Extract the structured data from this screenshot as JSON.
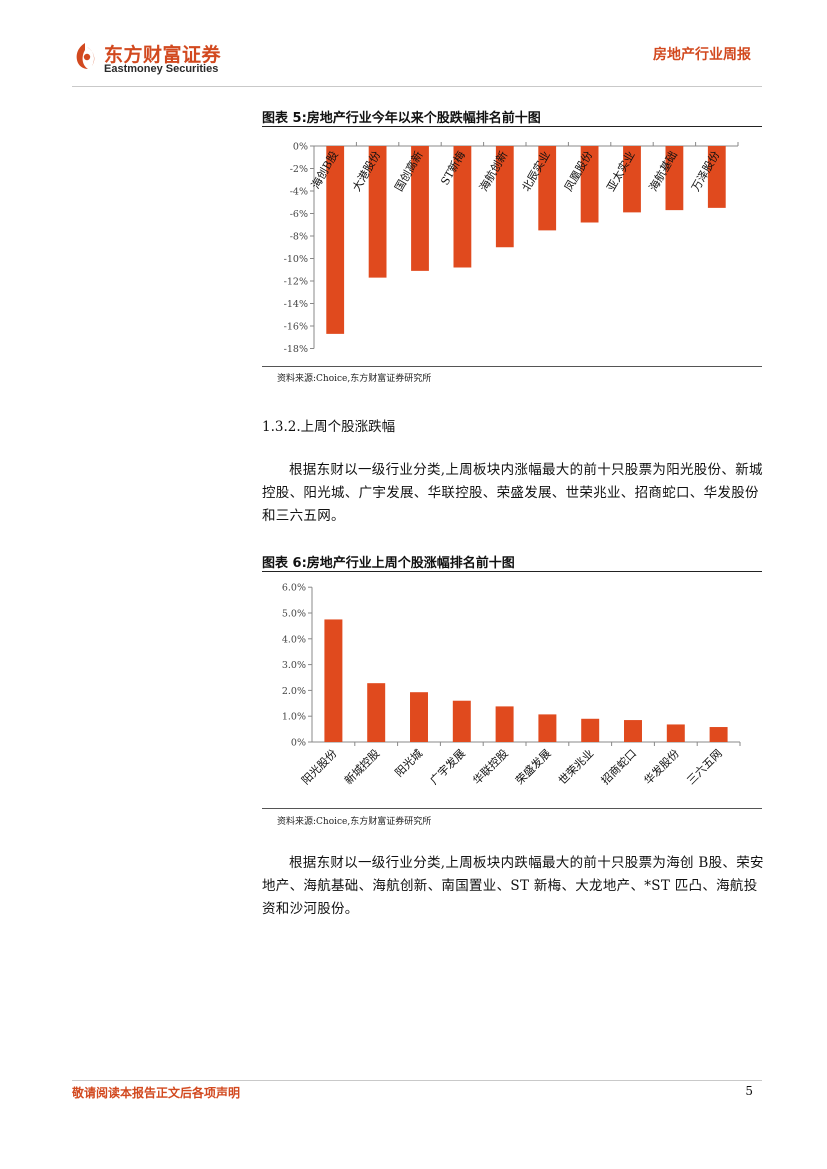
{
  "header": {
    "logo_cn": "东方财富证券",
    "logo_en": "Eastmoney Securities",
    "report_title": "房地产行业周报"
  },
  "figure5": {
    "title": "图表 5:房地产行业今年以来个股跌幅排名前十图",
    "source": "资料来源:Choice,东方财富证券研究所"
  },
  "section": {
    "heading": "1.3.2.上周个股涨跌幅",
    "para1": "根据东财以一级行业分类,上周板块内涨幅最大的前十只股票为阳光股份、新城控股、阳光城、广宇发展、华联控股、荣盛发展、世荣兆业、招商蛇口、华发股份和三六五网。"
  },
  "figure6": {
    "title": "图表 6:房地产行业上周个股涨幅排名前十图",
    "source": "资料来源:Choice,东方财富证券研究所"
  },
  "para2": "根据东财以一级行业分类,上周板块内跌幅最大的前十只股票为海创 B股、荣安地产、海航基础、海航创新、南国置业、ST 新梅、大龙地产、*ST 匹凸、海航投资和沙河股份。",
  "footer": {
    "note": "敬请阅读本报告正文后各项声明",
    "page": "5"
  },
  "colors": {
    "bar": "#e04a1e",
    "brand": "#d2491f"
  },
  "chart_data": [
    {
      "type": "bar",
      "title": "图表 5:房地产行业今年以来个股跌幅排名前十图",
      "categories": [
        "海创B股",
        "大港股份",
        "国创高新",
        "ST新梅",
        "海航创新",
        "北辰实业",
        "凤凰股份",
        "亚太实业",
        "海航基础",
        "万泽股份"
      ],
      "values": [
        -16.7,
        -11.7,
        -11.1,
        -10.8,
        -9.0,
        -7.5,
        -6.8,
        -5.9,
        -5.7,
        -5.5
      ],
      "unit": "%",
      "ylim": [
        -18,
        0
      ],
      "yticks": [
        "0%",
        "-2%",
        "-4%",
        "-6%",
        "-8%",
        "-10%",
        "-12%",
        "-14%",
        "-16%",
        "-18%"
      ],
      "grid": false,
      "legend": "none"
    },
    {
      "type": "bar",
      "title": "图表 6:房地产行业上周个股涨幅排名前十图",
      "categories": [
        "阳光股份",
        "新城控股",
        "阳光城",
        "广宇发展",
        "华联控股",
        "荣盛发展",
        "世荣兆业",
        "招商蛇口",
        "华发股份",
        "三六五网"
      ],
      "values": [
        4.75,
        2.28,
        1.93,
        1.6,
        1.38,
        1.07,
        0.9,
        0.85,
        0.68,
        0.58
      ],
      "unit": "%",
      "ylim": [
        0,
        6
      ],
      "yticks": [
        "0%",
        "1.0%",
        "2.0%",
        "3.0%",
        "4.0%",
        "5.0%",
        "6.0%"
      ],
      "grid": false,
      "legend": "none"
    }
  ]
}
